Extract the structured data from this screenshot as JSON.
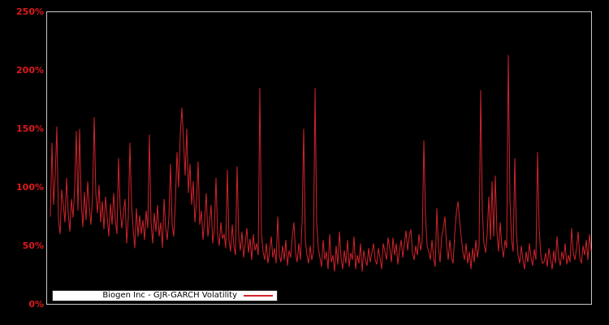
{
  "chart_data": {
    "type": "line",
    "title": "",
    "xlabel": "",
    "ylabel": "",
    "background_color": "#000000",
    "plot_border_color": "#c9c9c9",
    "grid": false,
    "x_axis": {
      "tick_labels_visible": false,
      "tick_labels": []
    },
    "y_axis": {
      "tick_labels": [
        "0%",
        "50%",
        "100%",
        "150%",
        "200%",
        "250%"
      ],
      "tick_values": [
        0,
        50,
        100,
        150,
        200,
        250
      ],
      "tick_label_color": "#dd1a1e",
      "ylim": [
        0,
        250
      ],
      "unit": "percent"
    },
    "legend": {
      "label": "Biogen Inc - GJR-GARCH Volatility",
      "position": "lower-left",
      "background": "#ffffff",
      "text_color": "#000000"
    },
    "series": [
      {
        "name": "Biogen Inc - GJR-GARCH Volatility",
        "color": "#d2232b",
        "values_pct": [
          75,
          138,
          85,
          110,
          152,
          72,
          60,
          98,
          85,
          70,
          108,
          78,
          62,
          90,
          74,
          100,
          148,
          80,
          150,
          88,
          66,
          96,
          72,
          105,
          82,
          68,
          92,
          160,
          95,
          78,
          102,
          70,
          88,
          64,
          92,
          75,
          58,
          86,
          68,
          95,
          72,
          60,
          125,
          82,
          65,
          78,
          90,
          52,
          74,
          138,
          85,
          64,
          48,
          82,
          58,
          76,
          60,
          72,
          55,
          80,
          65,
          145,
          70,
          52,
          78,
          62,
          85,
          58,
          70,
          48,
          90,
          66,
          55,
          75,
          120,
          68,
          58,
          88,
          130,
          100,
          145,
          168,
          140,
          110,
          150,
          95,
          120,
          85,
          105,
          70,
          88,
          122,
          68,
          80,
          55,
          72,
          95,
          58,
          70,
          85,
          52,
          65,
          108,
          60,
          50,
          70,
          56,
          60,
          48,
          115,
          55,
          45,
          68,
          50,
          42,
          118,
          58,
          46,
          62,
          40,
          52,
          65,
          44,
          56,
          38,
          60,
          46,
          52,
          42,
          185,
          60,
          45,
          38,
          52,
          35,
          45,
          58,
          40,
          48,
          35,
          75,
          42,
          36,
          50,
          38,
          55,
          33,
          46,
          40,
          58,
          70,
          44,
          36,
          52,
          38,
          70,
          150,
          55,
          42,
          35,
          50,
          38,
          45,
          185,
          70,
          48,
          40,
          32,
          55,
          38,
          45,
          30,
          60,
          36,
          42,
          28,
          50,
          34,
          62,
          40,
          30,
          46,
          35,
          55,
          32,
          44,
          38,
          58,
          30,
          42,
          35,
          52,
          28,
          46,
          38,
          33,
          48,
          36,
          44,
          52,
          38,
          34,
          48,
          40,
          30,
          52,
          45,
          38,
          57,
          48,
          36,
          57,
          42,
          52,
          34,
          46,
          55,
          40,
          52,
          63,
          46,
          58,
          64,
          44,
          38,
          50,
          42,
          60,
          46,
          55,
          140,
          75,
          50,
          45,
          38,
          55,
          40,
          32,
          82,
          48,
          36,
          58,
          65,
          75,
          50,
          38,
          55,
          40,
          35,
          60,
          78,
          88,
          72,
          58,
          45,
          38,
          52,
          35,
          45,
          30,
          48,
          36,
          55,
          40,
          50,
          183,
          80,
          52,
          44,
          60,
          92,
          55,
          105,
          58,
          110,
          62,
          45,
          70,
          50,
          40,
          55,
          48,
          213,
          90,
          55,
          45,
          125,
          60,
          42,
          35,
          50,
          38,
          30,
          45,
          36,
          52,
          40,
          33,
          47,
          38,
          130,
          65,
          42,
          35,
          36,
          44,
          32,
          48,
          38,
          30,
          46,
          35,
          58,
          40,
          33,
          45,
          38,
          52,
          34,
          42,
          36,
          65,
          44,
          38,
          48,
          62,
          40,
          35,
          50,
          42,
          55,
          38,
          60,
          45
        ]
      }
    ]
  }
}
